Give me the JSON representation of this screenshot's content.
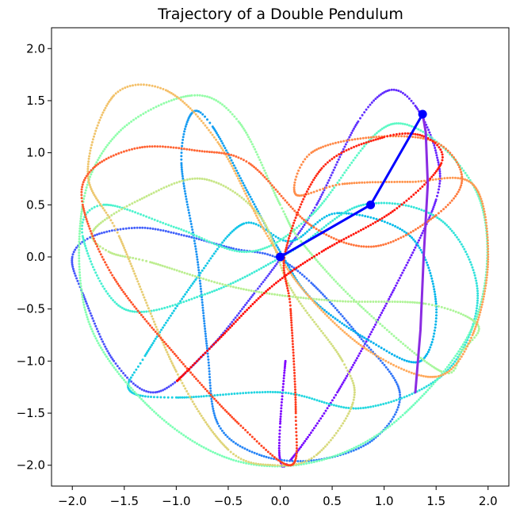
{
  "chart_data": {
    "type": "scatter",
    "title": "Trajectory of a Double Pendulum",
    "xlabel": "",
    "ylabel": "",
    "xlim": [
      -2.2,
      2.2
    ],
    "ylim": [
      -2.2,
      2.2
    ],
    "x_ticks": [
      -2.0,
      -1.5,
      -1.0,
      -0.5,
      0.0,
      0.5,
      1.0,
      1.5,
      2.0
    ],
    "y_ticks": [
      2.0,
      1.5,
      1.0,
      0.5,
      0.0,
      -0.5,
      -1.0,
      -1.5,
      -2.0
    ],
    "x_tick_labels": [
      "−2.0",
      "−1.5",
      "−1.0",
      "−0.5",
      "0.0",
      "0.5",
      "1.0",
      "1.5",
      "2.0"
    ],
    "y_tick_labels": [
      "2.0",
      "1.5",
      "1.0",
      "0.5",
      "0.0",
      "−0.5",
      "−1.0",
      "−1.5",
      "−2.0"
    ],
    "grid": false,
    "legend": "none",
    "colormap": "rainbow",
    "trajectory_waypoints": [
      [
        0.05,
        -1.0
      ],
      [
        0.0,
        -1.6
      ],
      [
        0.0,
        -1.95
      ],
      [
        0.1,
        -1.95
      ],
      [
        0.55,
        -1.3
      ],
      [
        1.1,
        -0.3
      ],
      [
        1.5,
        0.55
      ],
      [
        1.5,
        1.0
      ],
      [
        1.3,
        1.45
      ],
      [
        1.05,
        1.6
      ],
      [
        0.75,
        1.3
      ],
      [
        0.35,
        0.5
      ],
      [
        0.05,
        0.05
      ],
      [
        -0.25,
        -0.35
      ],
      [
        -0.7,
        -0.9
      ],
      [
        -1.2,
        -1.3
      ],
      [
        -1.6,
        -1.0
      ],
      [
        -1.9,
        -0.35
      ],
      [
        -2.0,
        0.0
      ],
      [
        -1.8,
        0.2
      ],
      [
        -1.35,
        0.28
      ],
      [
        -0.9,
        0.2
      ],
      [
        -0.45,
        0.08
      ],
      [
        -0.05,
        0.0
      ],
      [
        0.3,
        -0.25
      ],
      [
        0.75,
        -0.75
      ],
      [
        1.15,
        -1.3
      ],
      [
        0.9,
        -1.75
      ],
      [
        0.35,
        -1.95
      ],
      [
        -0.2,
        -1.9
      ],
      [
        -0.6,
        -1.6
      ],
      [
        -0.7,
        -0.9
      ],
      [
        -0.8,
        0.0
      ],
      [
        -0.95,
        0.9
      ],
      [
        -0.85,
        1.38
      ],
      [
        -0.65,
        1.25
      ],
      [
        -0.3,
        0.6
      ],
      [
        0.0,
        0.05
      ],
      [
        0.3,
        -0.4
      ],
      [
        0.85,
        -0.8
      ],
      [
        1.35,
        -1.0
      ],
      [
        1.5,
        -0.45
      ],
      [
        1.25,
        0.2
      ],
      [
        0.55,
        0.42
      ],
      [
        0.1,
        0.15
      ],
      [
        -0.35,
        0.32
      ],
      [
        -0.8,
        -0.2
      ],
      [
        -1.3,
        -0.95
      ],
      [
        -1.45,
        -1.28
      ],
      [
        -1.0,
        -1.35
      ],
      [
        0.0,
        -1.3
      ],
      [
        0.8,
        -1.45
      ],
      [
        1.6,
        -1.1
      ],
      [
        1.9,
        -0.35
      ],
      [
        1.55,
        0.35
      ],
      [
        0.8,
        0.5
      ],
      [
        0.1,
        0.05
      ],
      [
        -0.7,
        -0.35
      ],
      [
        -1.5,
        -0.5
      ],
      [
        -1.9,
        0.2
      ],
      [
        -1.7,
        0.5
      ],
      [
        -1.0,
        0.28
      ],
      [
        -0.3,
        0.05
      ],
      [
        0.3,
        0.4
      ],
      [
        1.1,
        1.28
      ],
      [
        1.9,
        0.6
      ],
      [
        1.9,
        -0.55
      ],
      [
        1.2,
        -1.5
      ],
      [
        0.4,
        -1.95
      ],
      [
        -0.45,
        -1.95
      ],
      [
        -1.25,
        -1.45
      ],
      [
        -1.85,
        -0.6
      ],
      [
        -1.9,
        0.5
      ],
      [
        -1.55,
        1.2
      ],
      [
        -0.85,
        1.55
      ],
      [
        -0.4,
        1.3
      ],
      [
        0.0,
        0.5
      ],
      [
        0.2,
        0.15
      ],
      [
        0.75,
        -0.45
      ],
      [
        1.55,
        -1.1
      ],
      [
        1.75,
        -0.9
      ],
      [
        1.9,
        -0.65
      ],
      [
        1.4,
        -0.45
      ],
      [
        0.5,
        -0.42
      ],
      [
        -0.4,
        -0.3
      ],
      [
        -1.25,
        -0.05
      ],
      [
        -1.65,
        0.05
      ],
      [
        -1.8,
        0.25
      ],
      [
        -1.35,
        0.55
      ],
      [
        -0.75,
        0.75
      ],
      [
        -0.2,
        0.4
      ],
      [
        0.1,
        -0.3
      ],
      [
        0.6,
        -1.0
      ],
      [
        0.7,
        -1.4
      ],
      [
        0.35,
        -1.9
      ],
      [
        -0.05,
        -2.0
      ],
      [
        -0.5,
        -1.85
      ],
      [
        -1.0,
        -1.1
      ],
      [
        -1.55,
        0.2
      ],
      [
        -1.85,
        0.8
      ],
      [
        -1.6,
        1.55
      ],
      [
        -1.1,
        1.6
      ],
      [
        -0.6,
        1.1
      ],
      [
        -0.15,
        0.25
      ],
      [
        0.25,
        -0.35
      ],
      [
        0.85,
        -0.9
      ],
      [
        1.5,
        -1.15
      ],
      [
        1.85,
        -0.75
      ],
      [
        2.0,
        0.0
      ],
      [
        1.85,
        0.7
      ],
      [
        1.25,
        0.72
      ],
      [
        0.6,
        0.7
      ],
      [
        0.15,
        0.6
      ],
      [
        0.3,
        1.0
      ],
      [
        0.9,
        1.15
      ],
      [
        1.5,
        1.1
      ],
      [
        1.75,
        0.75
      ],
      [
        1.5,
        0.4
      ],
      [
        0.9,
        0.1
      ],
      [
        0.3,
        0.3
      ],
      [
        -0.3,
        0.9
      ],
      [
        -0.8,
        1.02
      ],
      [
        -1.35,
        1.05
      ],
      [
        -1.8,
        0.85
      ],
      [
        -1.9,
        0.5
      ],
      [
        -1.6,
        -0.2
      ],
      [
        -1.0,
        -0.95
      ],
      [
        -0.4,
        -1.6
      ],
      [
        0.1,
        -2.0
      ],
      [
        0.15,
        -1.5
      ],
      [
        0.1,
        -0.5
      ],
      [
        0.05,
        0.05
      ],
      [
        0.4,
        0.85
      ],
      [
        1.0,
        1.15
      ],
      [
        1.4,
        1.15
      ],
      [
        1.55,
        0.9
      ],
      [
        1.1,
        0.45
      ],
      [
        0.4,
        0.05
      ],
      [
        -0.1,
        -0.3
      ],
      [
        -0.6,
        -0.8
      ],
      [
        -1.0,
        -1.2
      ]
    ],
    "pendulum": {
      "pivot": [
        0.0,
        0.0
      ],
      "bob1": [
        0.87,
        0.5
      ],
      "bob2": [
        1.37,
        1.37
      ]
    },
    "purple_tail": [
      [
        1.37,
        1.37
      ],
      [
        1.4,
        1.2
      ],
      [
        1.42,
        0.7
      ],
      [
        1.38,
        0.0
      ],
      [
        1.35,
        -0.7
      ],
      [
        1.3,
        -1.3
      ]
    ]
  }
}
